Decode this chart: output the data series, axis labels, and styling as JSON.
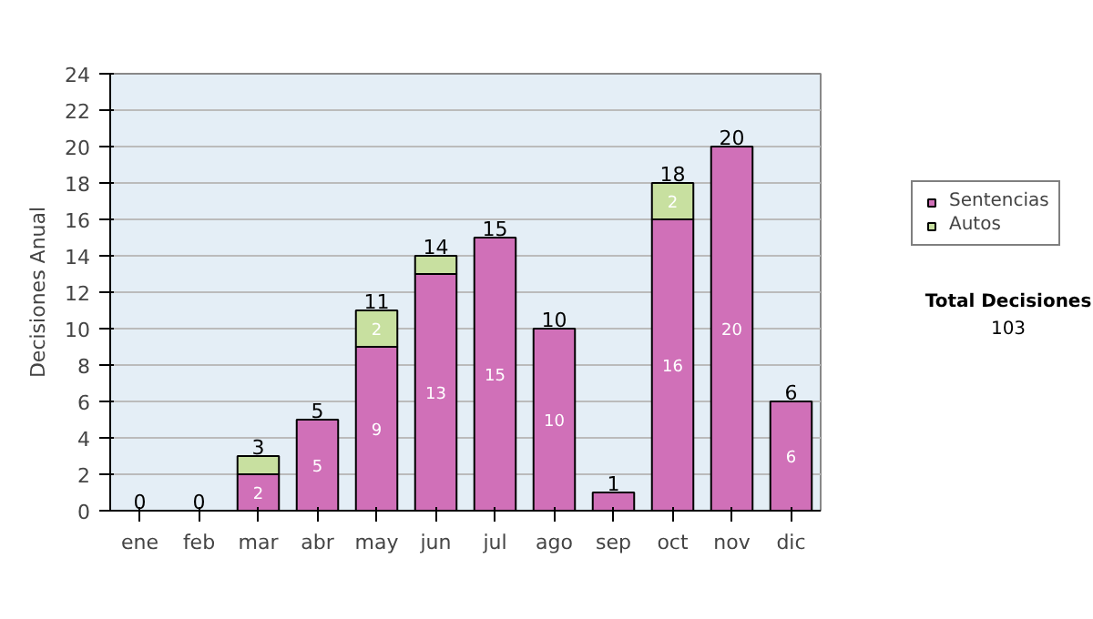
{
  "chart_data": {
    "type": "bar",
    "stacked": true,
    "ylabel": "Decisiones Anual",
    "categories": [
      "ene",
      "feb",
      "mar",
      "abr",
      "may",
      "jun",
      "jul",
      "ago",
      "sep",
      "oct",
      "nov",
      "dic"
    ],
    "series": [
      {
        "name": "Sentencias",
        "color": "#d070b8",
        "values": [
          0,
          0,
          2,
          5,
          9,
          13,
          15,
          10,
          1,
          16,
          20,
          6
        ],
        "value_labels": [
          null,
          null,
          "2",
          "5",
          "9",
          "13",
          "15",
          "10",
          null,
          "16",
          "20",
          "6"
        ]
      },
      {
        "name": "Autos",
        "color": "#c8e0a0",
        "values": [
          0,
          0,
          1,
          0,
          2,
          1,
          0,
          0,
          0,
          2,
          0,
          0
        ],
        "value_labels": [
          null,
          null,
          null,
          null,
          "2",
          null,
          null,
          null,
          null,
          "2",
          null,
          null
        ]
      }
    ],
    "totals": [
      "0",
      "0",
      "3",
      "5",
      "11",
      "14",
      "15",
      "10",
      "1",
      "18",
      "20",
      "6"
    ],
    "ylim": [
      0,
      24
    ],
    "yticks": [
      0,
      2,
      4,
      6,
      8,
      10,
      12,
      14,
      16,
      18,
      20,
      22,
      24
    ],
    "grid": "y",
    "legend": "right",
    "annotations": [
      "Total Decisiones",
      "103"
    ]
  }
}
